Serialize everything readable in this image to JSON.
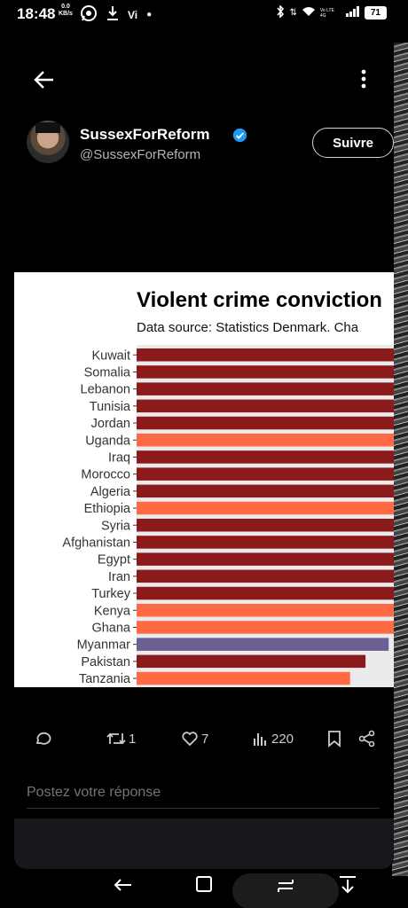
{
  "status": {
    "time": "18:48",
    "speed_value": "0.0",
    "speed_unit": "KB/s",
    "network_label": "Vi",
    "signal_label": "Vo LTE 4G",
    "battery": "71"
  },
  "post": {
    "display_name": "SussexForReform",
    "handle": "@SussexForReform",
    "follow_label": "Suivre",
    "retweets": "1",
    "likes": "7",
    "views": "220",
    "reply_placeholder": "Postez votre réponse"
  },
  "chart_data": {
    "type": "bar",
    "orientation": "horizontal",
    "title": "Violent crime conviction",
    "subtitle": "Data source: Statistics Denmark. Cha",
    "categories": [
      "Kuwait",
      "Somalia",
      "Lebanon",
      "Tunisia",
      "Jordan",
      "Uganda",
      "Iraq",
      "Morocco",
      "Algeria",
      "Ethiopia",
      "Syria",
      "Afghanistan",
      "Egypt",
      "Iran",
      "Turkey",
      "Kenya",
      "Ghana",
      "Myanmar",
      "Pakistan",
      "Tanzania"
    ],
    "bar_fill_fraction_visible": [
      1,
      1,
      1,
      1,
      1,
      1,
      1,
      1,
      1,
      1,
      1,
      1,
      1,
      1,
      1,
      1,
      1,
      0.98,
      0.89,
      0.83
    ],
    "bar_colors": [
      "#8b1a1a",
      "#8b1a1a",
      "#8b1a1a",
      "#8b1a1a",
      "#8b1a1a",
      "#ff6a45",
      "#8b1a1a",
      "#8b1a1a",
      "#8b1a1a",
      "#ff6a45",
      "#8b1a1a",
      "#8b1a1a",
      "#8b1a1a",
      "#8b1a1a",
      "#8b1a1a",
      "#ff6a45",
      "#ff6a45",
      "#6b5f94",
      "#8b1a1a",
      "#ff6a45"
    ]
  }
}
